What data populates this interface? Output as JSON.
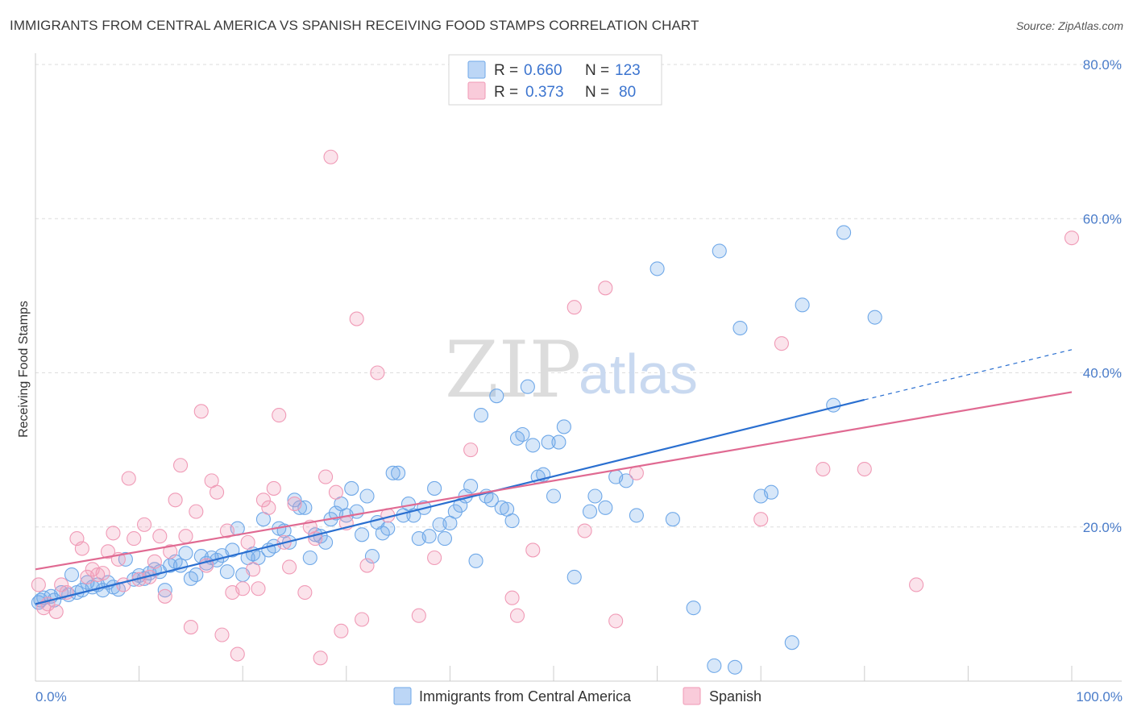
{
  "header": {
    "title": "IMMIGRANTS FROM CENTRAL AMERICA VS SPANISH RECEIVING FOOD STAMPS CORRELATION CHART",
    "source": "Source: ZipAtlas.com"
  },
  "watermark": {
    "zip": "ZIP",
    "atlas": "atlas"
  },
  "legend": {
    "rows": [
      {
        "r_label": "R =",
        "r_value": "0.660",
        "n_label": "N =",
        "n_value": "123",
        "color": "#6fa8e8"
      },
      {
        "r_label": "R =",
        "r_value": "0.373",
        "n_label": "N =",
        "n_value": "80",
        "color": "#f09ab6"
      }
    ]
  },
  "bottom_legend": [
    {
      "label": "Immigrants from Central America",
      "color": "#6fa8e8"
    },
    {
      "label": "Spanish",
      "color": "#f09ab6"
    }
  ],
  "chart_data": {
    "type": "scatter",
    "xlabel": "",
    "ylabel": "Receiving Food Stamps",
    "xlim": [
      0,
      100
    ],
    "ylim": [
      0,
      80
    ],
    "x_tick_labels": [
      "0.0%",
      "100.0%"
    ],
    "y_ticks": [
      20,
      40,
      60,
      80
    ],
    "y_tick_labels": [
      "20.0%",
      "40.0%",
      "60.0%",
      "80.0%"
    ],
    "grid": true,
    "series": [
      {
        "name": "Immigrants from Central America",
        "color": "#6fa8e8",
        "trend_color": "#2a6fd0",
        "r": 0.66,
        "n": 123,
        "trend": {
          "x0": 0,
          "y0": 10.0,
          "x1": 80,
          "y1": 36.5,
          "x_dash_end": 100,
          "y_dash_end": 43.0
        },
        "points": [
          [
            0.3,
            10.2
          ],
          [
            0.8,
            10.8
          ],
          [
            1.5,
            11.0
          ],
          [
            1.8,
            10.5
          ],
          [
            2.5,
            11.5
          ],
          [
            3.2,
            11.2
          ],
          [
            3.5,
            13.8
          ],
          [
            4.0,
            11.5
          ],
          [
            4.5,
            11.8
          ],
          [
            5.0,
            12.8
          ],
          [
            5.5,
            12.2
          ],
          [
            6.0,
            12.5
          ],
          [
            6.5,
            11.8
          ],
          [
            7.0,
            12.8
          ],
          [
            7.5,
            12.2
          ],
          [
            8.0,
            11.9
          ],
          [
            8.7,
            15.8
          ],
          [
            9.5,
            13.2
          ],
          [
            10.0,
            13.7
          ],
          [
            10.5,
            13.3
          ],
          [
            11.0,
            14.0
          ],
          [
            11.5,
            14.5
          ],
          [
            12.0,
            14.2
          ],
          [
            12.5,
            11.8
          ],
          [
            13.0,
            15.0
          ],
          [
            13.5,
            15.5
          ],
          [
            14.0,
            15.0
          ],
          [
            14.5,
            16.6
          ],
          [
            15.0,
            13.3
          ],
          [
            15.5,
            13.8
          ],
          [
            16.0,
            16.2
          ],
          [
            16.5,
            15.3
          ],
          [
            17.0,
            16.0
          ],
          [
            17.5,
            15.7
          ],
          [
            18.0,
            16.3
          ],
          [
            18.5,
            14.2
          ],
          [
            19.0,
            17.0
          ],
          [
            19.5,
            19.8
          ],
          [
            20.0,
            13.8
          ],
          [
            20.5,
            16.0
          ],
          [
            21.0,
            16.5
          ],
          [
            21.5,
            16.0
          ],
          [
            22.0,
            21.0
          ],
          [
            22.5,
            17.0
          ],
          [
            23.0,
            17.5
          ],
          [
            23.5,
            19.8
          ],
          [
            24.0,
            19.5
          ],
          [
            24.5,
            18.0
          ],
          [
            25.0,
            23.5
          ],
          [
            25.5,
            22.5
          ],
          [
            26.0,
            22.5
          ],
          [
            26.5,
            16.0
          ],
          [
            27.0,
            19.0
          ],
          [
            27.5,
            18.8
          ],
          [
            28.0,
            18.0
          ],
          [
            28.5,
            21.0
          ],
          [
            29.0,
            21.8
          ],
          [
            29.5,
            23.0
          ],
          [
            30.0,
            21.5
          ],
          [
            30.5,
            25.0
          ],
          [
            31.0,
            22.0
          ],
          [
            31.5,
            19.0
          ],
          [
            32.0,
            24.0
          ],
          [
            32.5,
            16.2
          ],
          [
            33.0,
            20.6
          ],
          [
            33.5,
            19.2
          ],
          [
            34.0,
            19.8
          ],
          [
            34.5,
            27.0
          ],
          [
            35.0,
            27.0
          ],
          [
            35.5,
            21.5
          ],
          [
            36.0,
            23.0
          ],
          [
            36.5,
            21.5
          ],
          [
            37.0,
            18.5
          ],
          [
            37.5,
            22.5
          ],
          [
            38.0,
            18.8
          ],
          [
            38.5,
            25.0
          ],
          [
            39.0,
            20.3
          ],
          [
            39.5,
            18.5
          ],
          [
            40.0,
            20.5
          ],
          [
            40.5,
            22.0
          ],
          [
            41.0,
            22.8
          ],
          [
            41.5,
            24.0
          ],
          [
            42.0,
            25.3
          ],
          [
            42.5,
            15.6
          ],
          [
            43.0,
            34.5
          ],
          [
            43.5,
            24.0
          ],
          [
            44.0,
            23.5
          ],
          [
            44.5,
            37.0
          ],
          [
            45.0,
            22.5
          ],
          [
            45.5,
            22.3
          ],
          [
            46.0,
            20.8
          ],
          [
            46.5,
            31.5
          ],
          [
            47.0,
            32.0
          ],
          [
            47.5,
            38.2
          ],
          [
            48.0,
            30.6
          ],
          [
            48.5,
            26.5
          ],
          [
            49.0,
            26.8
          ],
          [
            49.5,
            31.0
          ],
          [
            50.0,
            24.0
          ],
          [
            50.5,
            31.0
          ],
          [
            51.0,
            33.0
          ],
          [
            52.0,
            13.5
          ],
          [
            53.5,
            22.0
          ],
          [
            54.0,
            24.0
          ],
          [
            55.0,
            22.5
          ],
          [
            56.0,
            26.5
          ],
          [
            57.0,
            26.0
          ],
          [
            58.0,
            21.5
          ],
          [
            60.0,
            53.5
          ],
          [
            61.5,
            21.0
          ],
          [
            63.5,
            9.5
          ],
          [
            65.5,
            2.0
          ],
          [
            66.0,
            55.8
          ],
          [
            67.5,
            1.8
          ],
          [
            68.0,
            45.8
          ],
          [
            70.0,
            24.0
          ],
          [
            71.0,
            24.5
          ],
          [
            73.0,
            5.0
          ],
          [
            74.0,
            48.8
          ],
          [
            77.0,
            35.8
          ],
          [
            78.0,
            58.2
          ],
          [
            81.0,
            47.2
          ],
          [
            0.5,
            10.5
          ]
        ]
      },
      {
        "name": "Spanish",
        "color": "#f09ab6",
        "trend_color": "#e06a92",
        "r": 0.373,
        "n": 80,
        "trend": {
          "x0": 0,
          "y0": 14.5,
          "x1": 100,
          "y1": 37.5
        },
        "points": [
          [
            0.3,
            12.5
          ],
          [
            0.8,
            9.5
          ],
          [
            1.2,
            10.0
          ],
          [
            2.0,
            9.0
          ],
          [
            2.5,
            12.5
          ],
          [
            3.0,
            11.5
          ],
          [
            4.0,
            18.5
          ],
          [
            4.5,
            17.2
          ],
          [
            5.0,
            13.5
          ],
          [
            5.5,
            14.5
          ],
          [
            6.0,
            13.8
          ],
          [
            6.5,
            14.0
          ],
          [
            7.0,
            16.8
          ],
          [
            7.5,
            19.2
          ],
          [
            8.0,
            15.8
          ],
          [
            8.5,
            12.5
          ],
          [
            9.0,
            26.3
          ],
          [
            9.5,
            18.5
          ],
          [
            10.0,
            13.2
          ],
          [
            10.5,
            20.3
          ],
          [
            11.0,
            13.5
          ],
          [
            11.5,
            15.5
          ],
          [
            12.0,
            18.8
          ],
          [
            12.5,
            11.0
          ],
          [
            13.0,
            16.8
          ],
          [
            13.5,
            23.5
          ],
          [
            14.0,
            28.0
          ],
          [
            14.5,
            18.8
          ],
          [
            15.0,
            7.0
          ],
          [
            15.5,
            22.0
          ],
          [
            16.0,
            35.0
          ],
          [
            16.5,
            15.0
          ],
          [
            17.0,
            26.0
          ],
          [
            17.5,
            24.5
          ],
          [
            18.0,
            6.0
          ],
          [
            18.5,
            19.5
          ],
          [
            19.0,
            11.5
          ],
          [
            19.5,
            3.5
          ],
          [
            20.0,
            12.0
          ],
          [
            20.5,
            18.0
          ],
          [
            21.0,
            14.5
          ],
          [
            21.5,
            12.0
          ],
          [
            22.0,
            23.5
          ],
          [
            22.5,
            22.5
          ],
          [
            23.0,
            25.0
          ],
          [
            23.5,
            34.5
          ],
          [
            24.0,
            18.0
          ],
          [
            24.5,
            14.8
          ],
          [
            25.0,
            23.0
          ],
          [
            26.0,
            11.5
          ],
          [
            26.5,
            20.0
          ],
          [
            27.0,
            18.5
          ],
          [
            27.5,
            3.0
          ],
          [
            28.0,
            26.5
          ],
          [
            28.5,
            68.0
          ],
          [
            29.0,
            24.5
          ],
          [
            29.5,
            6.5
          ],
          [
            30.0,
            20.5
          ],
          [
            31.0,
            47.0
          ],
          [
            31.5,
            8.0
          ],
          [
            32.0,
            15.0
          ],
          [
            33.0,
            40.0
          ],
          [
            34.0,
            21.5
          ],
          [
            37.0,
            8.5
          ],
          [
            38.5,
            16.0
          ],
          [
            42.0,
            30.0
          ],
          [
            46.0,
            10.8
          ],
          [
            46.5,
            8.5
          ],
          [
            48.0,
            17.0
          ],
          [
            52.0,
            48.5
          ],
          [
            53.0,
            19.5
          ],
          [
            55.0,
            51.0
          ],
          [
            56.0,
            7.8
          ],
          [
            58.0,
            27.0
          ],
          [
            70.0,
            21.0
          ],
          [
            72.0,
            43.8
          ],
          [
            76.0,
            27.5
          ],
          [
            80.0,
            27.5
          ],
          [
            85.0,
            12.5
          ],
          [
            100.0,
            57.5
          ]
        ]
      }
    ]
  }
}
